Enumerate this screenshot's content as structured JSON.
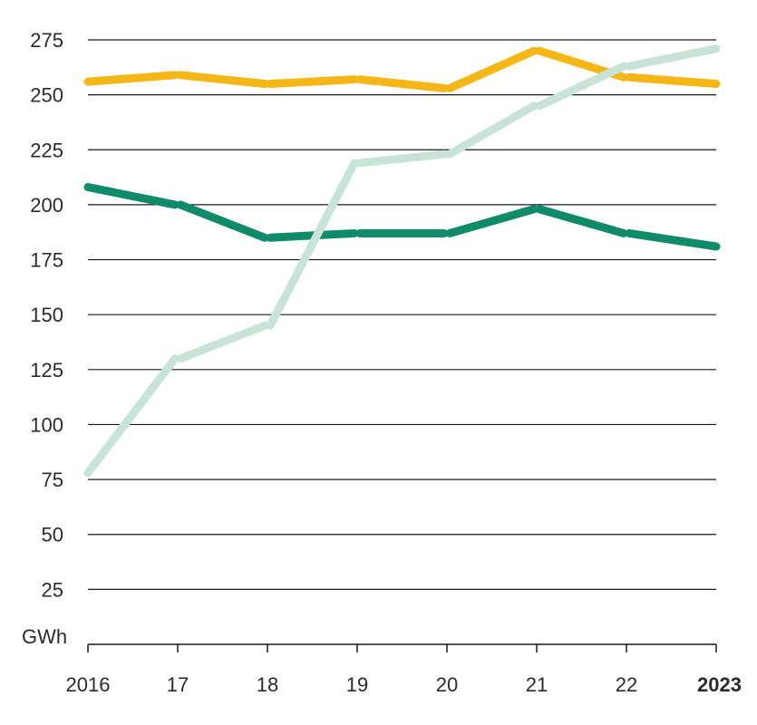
{
  "chart_data": {
    "type": "line",
    "unit": "GWh",
    "x": [
      "2016",
      "17",
      "18",
      "19",
      "20",
      "21",
      "22",
      "2023"
    ],
    "x_bold_last": true,
    "yticks": [
      25,
      50,
      75,
      100,
      125,
      150,
      175,
      200,
      225,
      250,
      275
    ],
    "ylim": [
      0,
      275
    ],
    "grid": true,
    "legend": "none",
    "series": [
      {
        "color": "#f5b717",
        "values": [
          256,
          259,
          255,
          257,
          253,
          270,
          258,
          255
        ]
      },
      {
        "color": "#0f8a6a",
        "values": [
          208,
          200,
          185,
          187,
          187,
          198,
          187,
          181
        ]
      },
      {
        "color": "#c8e3d8",
        "values": [
          78,
          130,
          145,
          219,
          223,
          245,
          263,
          271
        ]
      }
    ]
  }
}
